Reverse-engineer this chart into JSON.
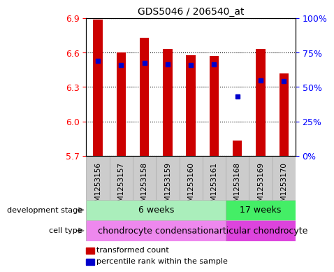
{
  "title": "GDS5046 / 206540_at",
  "samples": [
    "GSM1253156",
    "GSM1253157",
    "GSM1253158",
    "GSM1253159",
    "GSM1253160",
    "GSM1253161",
    "GSM1253168",
    "GSM1253169",
    "GSM1253170"
  ],
  "bar_heights": [
    6.89,
    6.6,
    6.73,
    6.63,
    6.58,
    6.57,
    5.83,
    6.63,
    6.42
  ],
  "blue_dot_y": [
    6.53,
    6.49,
    6.51,
    6.5,
    6.49,
    6.5,
    6.22,
    6.36,
    6.35
  ],
  "y_min": 5.7,
  "y_max": 6.9,
  "y_ticks": [
    5.7,
    6.0,
    6.3,
    6.6,
    6.9
  ],
  "right_y_ticks": [
    0,
    25,
    50,
    75,
    100
  ],
  "bar_color": "#cc0000",
  "dot_color": "#0000cc",
  "bar_bottom": 5.7,
  "group1_samples": 6,
  "group2_samples": 3,
  "group1_stage": "6 weeks",
  "group2_stage": "17 weeks",
  "group1_cell": "chondrocyte condensation",
  "group2_cell": "articular chondrocyte",
  "stage_color1": "#aaeebb",
  "stage_color2": "#44ee66",
  "cell_color1": "#ee88ee",
  "cell_color2": "#dd44dd",
  "legend_label1": "transformed count",
  "legend_label2": "percentile rank within the sample",
  "development_stage_label": "development stage",
  "cell_type_label": "cell type",
  "tick_label_bg": "#cccccc",
  "bar_width": 0.4
}
